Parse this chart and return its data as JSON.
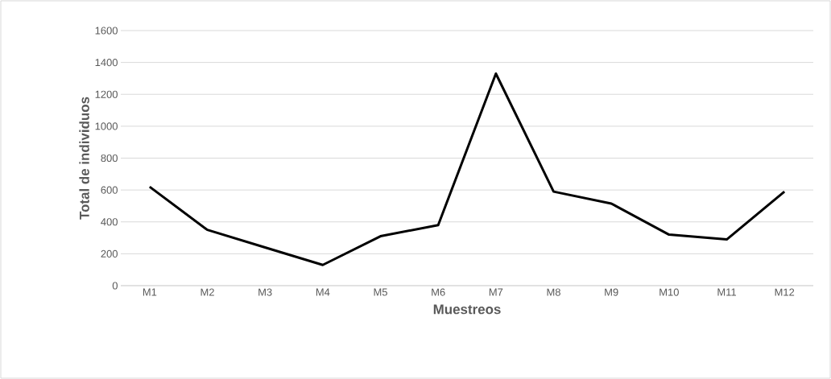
{
  "chart_data": {
    "type": "line",
    "xlabel": "Muestreos",
    "ylabel": "Total de individuos",
    "categories": [
      "M1",
      "M2",
      "M3",
      "M4",
      "M5",
      "M6",
      "M7",
      "M8",
      "M9",
      "M10",
      "M11",
      "M12"
    ],
    "series": [
      {
        "color": "#000000",
        "values": [
          620,
          350,
          240,
          130,
          310,
          380,
          1330,
          590,
          515,
          320,
          290,
          590
        ]
      }
    ],
    "ylim": [
      0,
      1600
    ],
    "yticks": [
      0,
      200,
      400,
      600,
      800,
      1000,
      1200,
      1400,
      1600
    ],
    "grid": "y",
    "marker": "none",
    "line_style": "solid"
  }
}
